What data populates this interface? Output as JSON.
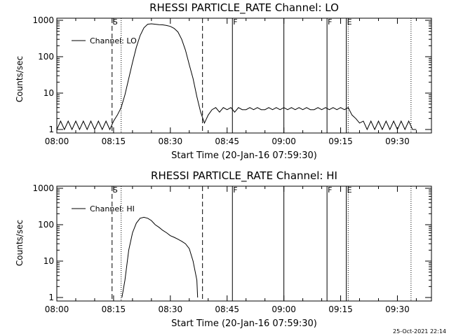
{
  "footer_timestamp": "25-Oct-2021 22:14",
  "chart_data": [
    {
      "type": "line",
      "title": "RHESSI PARTICLE_RATE Channel: LO",
      "xlabel": "Start Time (20-Jan-16 07:59:30)",
      "ylabel": "Counts/sec",
      "y_scale": "log",
      "ylim": [
        1,
        1000
      ],
      "xlim": [
        "08:00",
        "09:39"
      ],
      "x_ticks": [
        "08:00",
        "08:15",
        "08:30",
        "08:45",
        "09:00",
        "09:15",
        "09:30"
      ],
      "y_ticks": [
        "1",
        "10",
        "100",
        "1000"
      ],
      "legend": "top-left",
      "series": [
        {
          "name": "Channel: LO",
          "x": [
            "08:00",
            "08:01",
            "08:02",
            "08:03",
            "08:04",
            "08:05",
            "08:06",
            "08:07",
            "08:08",
            "08:09",
            "08:10",
            "08:11",
            "08:12",
            "08:13",
            "08:14",
            "08:15",
            "08:16",
            "08:17",
            "08:18",
            "08:19",
            "08:20",
            "08:21",
            "08:22",
            "08:23",
            "08:24",
            "08:25",
            "08:26",
            "08:27",
            "08:28",
            "08:29",
            "08:30",
            "08:31",
            "08:32",
            "08:33",
            "08:34",
            "08:35",
            "08:36",
            "08:37",
            "08:38",
            "08:39",
            "08:40",
            "08:41",
            "08:42",
            "08:43",
            "08:44",
            "08:45",
            "08:46",
            "08:47",
            "08:48",
            "08:49",
            "08:50",
            "08:51",
            "08:52",
            "08:53",
            "08:54",
            "08:55",
            "08:56",
            "08:57",
            "08:58",
            "08:59",
            "09:00",
            "09:01",
            "09:02",
            "09:03",
            "09:04",
            "09:05",
            "09:06",
            "09:07",
            "09:08",
            "09:09",
            "09:10",
            "09:11",
            "09:12",
            "09:13",
            "09:14",
            "09:15",
            "09:16",
            "09:17",
            "09:18",
            "09:19",
            "09:20",
            "09:21",
            "09:22",
            "09:23",
            "09:24",
            "09:25",
            "09:26",
            "09:27",
            "09:28",
            "09:29",
            "09:30",
            "09:31",
            "09:32",
            "09:33",
            "09:34",
            "09:35"
          ],
          "values": [
            1,
            1.7,
            1,
            1.7,
            1,
            1.7,
            1,
            1.7,
            1,
            1.7,
            1,
            1.7,
            1,
            1.7,
            1,
            1.7,
            2.5,
            4,
            9,
            25,
            70,
            180,
            380,
            620,
            780,
            800,
            780,
            760,
            750,
            720,
            680,
            600,
            480,
            300,
            150,
            60,
            25,
            8,
            3,
            1.5,
            2.5,
            3.5,
            4,
            3,
            4,
            3.5,
            4,
            3,
            4,
            3.5,
            3.5,
            4,
            3.5,
            4,
            3.5,
            3.5,
            4,
            3.5,
            4,
            3.5,
            4,
            3.5,
            4,
            3.5,
            4,
            3.5,
            4,
            3.5,
            3.5,
            4,
            3.5,
            4,
            3.5,
            4,
            3.5,
            4,
            3.5,
            4,
            2.5,
            2,
            1.5,
            1.7,
            1,
            1.7,
            1,
            1.7,
            1,
            1.7,
            1,
            1.7,
            1,
            1.7,
            1,
            1.7,
            1,
            1
          ]
        }
      ],
      "markers": [
        {
          "x": "08:14:36",
          "style": "dashed",
          "label": "S"
        },
        {
          "x": "08:17:00",
          "style": "dotted",
          "label": ""
        },
        {
          "x": "08:38:30",
          "style": "dashed",
          "label": ""
        },
        {
          "x": "08:46:24",
          "style": "solid",
          "label": "F"
        },
        {
          "x": "09:00:00",
          "style": "solid",
          "label": ""
        },
        {
          "x": "09:11:24",
          "style": "solid",
          "label": "F"
        },
        {
          "x": "09:16:30",
          "style": "solid",
          "label": "E"
        },
        {
          "x": "09:17:00",
          "style": "dotted",
          "label": ""
        },
        {
          "x": "09:33:36",
          "style": "dotted",
          "label": ""
        }
      ]
    },
    {
      "type": "line",
      "title": "RHESSI PARTICLE_RATE Channel: HI",
      "xlabel": "Start Time (20-Jan-16 07:59:30)",
      "ylabel": "Counts/sec",
      "y_scale": "log",
      "ylim": [
        1,
        1000
      ],
      "xlim": [
        "08:00",
        "09:39"
      ],
      "x_ticks": [
        "08:00",
        "08:15",
        "08:30",
        "08:45",
        "09:00",
        "09:15",
        "09:30"
      ],
      "y_ticks": [
        "1",
        "10",
        "100",
        "1000"
      ],
      "legend": "top-left",
      "series": [
        {
          "name": "Channel: HI",
          "x": [
            "08:17:12",
            "08:18",
            "08:19",
            "08:20",
            "08:21",
            "08:22",
            "08:23",
            "08:24",
            "08:25",
            "08:26",
            "08:27",
            "08:28",
            "08:29",
            "08:30",
            "08:31",
            "08:32",
            "08:33",
            "08:34",
            "08:35",
            "08:36",
            "08:37",
            "08:37:12"
          ],
          "values": [
            1,
            3,
            20,
            60,
            110,
            150,
            160,
            150,
            130,
            100,
            85,
            70,
            60,
            50,
            45,
            40,
            35,
            30,
            22,
            10,
            3,
            1
          ]
        }
      ],
      "markers": [
        {
          "x": "08:14:36",
          "style": "dashed",
          "label": "S"
        },
        {
          "x": "08:17:00",
          "style": "dotted",
          "label": ""
        },
        {
          "x": "08:38:30",
          "style": "dashed",
          "label": ""
        },
        {
          "x": "08:46:24",
          "style": "solid",
          "label": "F"
        },
        {
          "x": "09:00:00",
          "style": "solid",
          "label": ""
        },
        {
          "x": "09:11:24",
          "style": "solid",
          "label": "F"
        },
        {
          "x": "09:16:30",
          "style": "solid",
          "label": "E"
        },
        {
          "x": "09:17:00",
          "style": "dotted",
          "label": ""
        },
        {
          "x": "09:33:36",
          "style": "dotted",
          "label": ""
        }
      ]
    }
  ]
}
